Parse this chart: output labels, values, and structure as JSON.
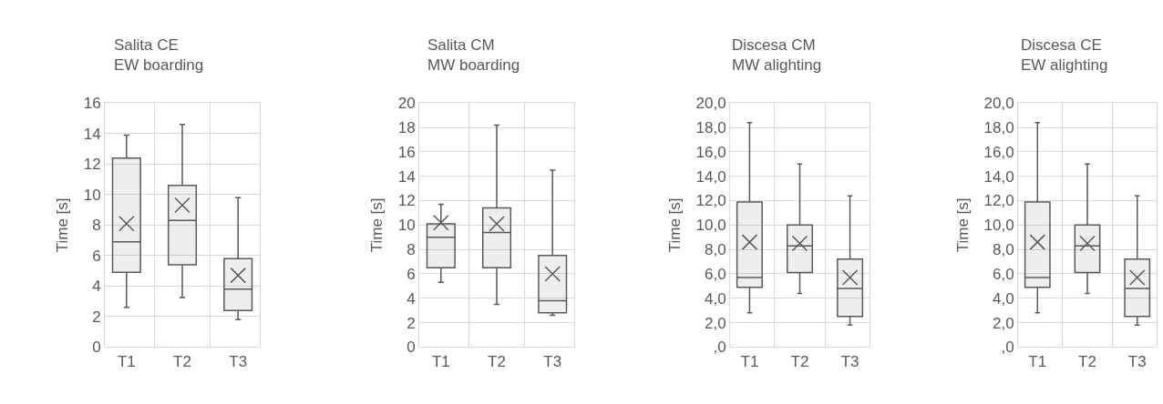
{
  "chart_data": [
    {
      "type": "box",
      "title": "Salita CE\nEW boarding",
      "ylabel": "Time [s]",
      "categories": [
        "T1",
        "T2",
        "T3"
      ],
      "ylim": [
        0,
        16
      ],
      "yticks": [
        0,
        2,
        4,
        6,
        8,
        10,
        12,
        14,
        16
      ],
      "grid": true,
      "marker": "cross",
      "series": [
        {
          "color": "#595959",
          "boxes": [
            {
              "low": 2.6,
              "q1": 4.9,
              "median": 6.9,
              "q3": 12.4,
              "high": 13.9,
              "mean": 8.1
            },
            {
              "low": 3.25,
              "q1": 5.4,
              "median": 8.3,
              "q3": 10.6,
              "high": 14.6,
              "mean": 9.3
            },
            {
              "low": 1.8,
              "q1": 2.4,
              "median": 3.8,
              "q3": 5.8,
              "high": 9.8,
              "mean": 4.7
            }
          ]
        }
      ]
    },
    {
      "type": "box",
      "title": "Salita CM\nMW boarding",
      "ylabel": "Time [s]",
      "categories": [
        "T1",
        "T2",
        "T3"
      ],
      "ylim": [
        0,
        20
      ],
      "yticks": [
        0,
        2,
        4,
        6,
        8,
        10,
        12,
        14,
        16,
        18,
        20
      ],
      "grid": true,
      "marker": "cross",
      "series": [
        {
          "color": "#595959",
          "boxes": [
            {
              "low": 5.3,
              "q1": 6.5,
              "median": 9.0,
              "q3": 10.1,
              "high": 11.7,
              "mean": 10.2
            },
            {
              "low": 3.5,
              "q1": 6.5,
              "median": 9.4,
              "q3": 11.4,
              "high": 18.2,
              "mean": 10.1
            },
            {
              "low": 2.6,
              "q1": 2.8,
              "median": 3.8,
              "q3": 7.5,
              "high": 14.5,
              "mean": 6.0
            }
          ]
        }
      ]
    },
    {
      "type": "box",
      "title": "Discesa CM\nMW alighting",
      "ylabel": "Time [s]",
      "categories": [
        "T1",
        "T2",
        "T3"
      ],
      "ylim": [
        0,
        20
      ],
      "yticks": [
        {
          "value": 0,
          "label": ",0"
        },
        {
          "value": 2,
          "label": "2,0"
        },
        {
          "value": 4,
          "label": "4,0"
        },
        {
          "value": 6,
          "label": "6,0"
        },
        {
          "value": 8,
          "label": "8,0"
        },
        {
          "value": 10,
          "label": "10,0"
        },
        {
          "value": 12,
          "label": "12,0"
        },
        {
          "value": 14,
          "label": "14,0"
        },
        {
          "value": 16,
          "label": "16,0"
        },
        {
          "value": 18,
          "label": "18,0"
        },
        {
          "value": 20,
          "label": "20,0"
        }
      ],
      "grid": true,
      "marker": "cross",
      "series": [
        {
          "color": "#595959",
          "boxes": [
            {
              "low": 2.8,
              "q1": 4.9,
              "median": 5.7,
              "q3": 11.9,
              "high": 18.4,
              "mean": 8.6
            },
            {
              "low": 4.4,
              "q1": 6.1,
              "median": 8.3,
              "q3": 10.0,
              "high": 15.0,
              "mean": 8.5
            },
            {
              "low": 1.8,
              "q1": 2.5,
              "median": 4.8,
              "q3": 7.2,
              "high": 12.4,
              "mean": 5.7
            }
          ]
        }
      ]
    },
    {
      "type": "box",
      "title": "Discesa CE\nEW alighting",
      "ylabel": "Time [s]",
      "categories": [
        "T1",
        "T2",
        "T3"
      ],
      "ylim": [
        0,
        20
      ],
      "yticks": [
        {
          "value": 0,
          "label": ",0"
        },
        {
          "value": 2,
          "label": "2,0"
        },
        {
          "value": 4,
          "label": "4,0"
        },
        {
          "value": 6,
          "label": "6,0"
        },
        {
          "value": 8,
          "label": "8,0"
        },
        {
          "value": 10,
          "label": "10,0"
        },
        {
          "value": 12,
          "label": "12,0"
        },
        {
          "value": 14,
          "label": "14,0"
        },
        {
          "value": 16,
          "label": "16,0"
        },
        {
          "value": 18,
          "label": "18,0"
        },
        {
          "value": 20,
          "label": "20,0"
        }
      ],
      "grid": true,
      "marker": "cross",
      "series": [
        {
          "color": "#595959",
          "boxes": [
            {
              "low": 2.8,
              "q1": 4.9,
              "median": 5.7,
              "q3": 11.9,
              "high": 18.4,
              "mean": 8.6
            },
            {
              "low": 4.4,
              "q1": 6.1,
              "median": 8.3,
              "q3": 10.0,
              "high": 15.0,
              "mean": 8.5
            },
            {
              "low": 1.8,
              "q1": 2.5,
              "median": 4.8,
              "q3": 7.2,
              "high": 12.4,
              "mean": 5.7
            }
          ]
        }
      ]
    }
  ]
}
